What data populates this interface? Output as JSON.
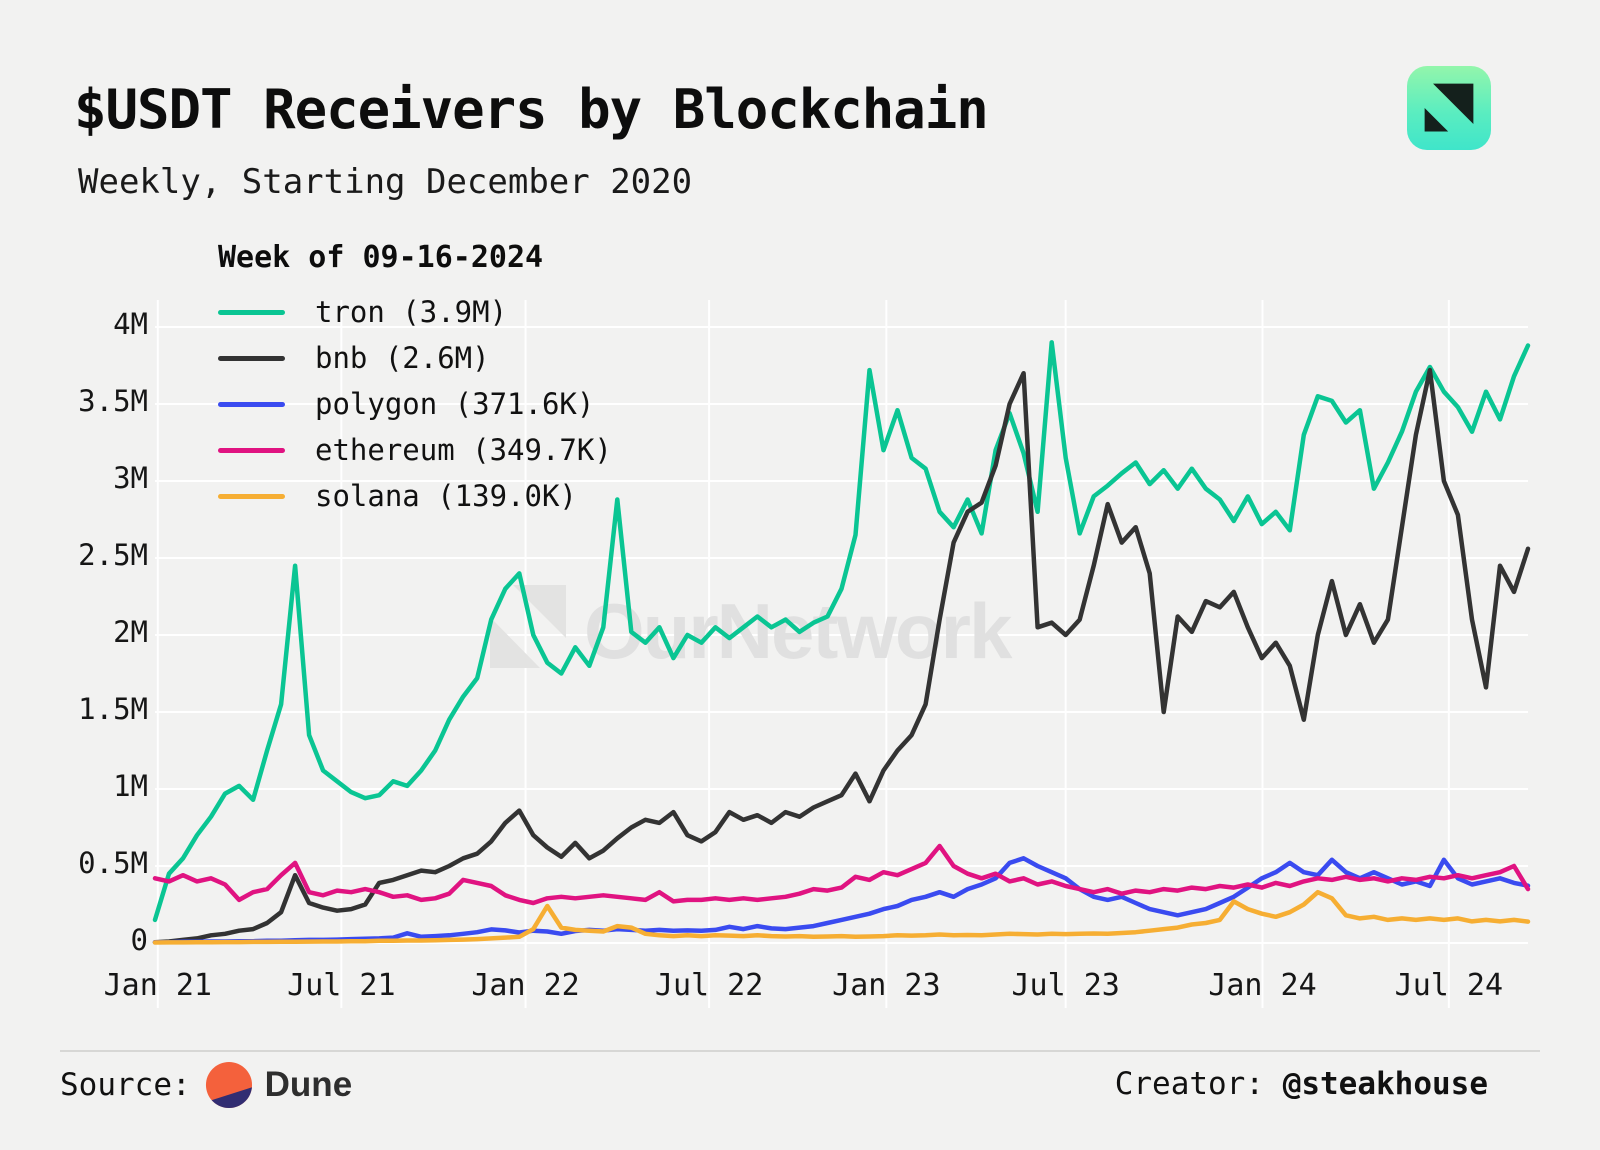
{
  "header": {
    "title": "$USDT Receivers by Blockchain",
    "subtitle": "Weekly, Starting December 2020"
  },
  "watermark": {
    "text": "OurNetwork",
    "color": "#e0e0e0"
  },
  "footer": {
    "source_label": "Source:",
    "source_name": "Dune",
    "creator_label": "Creator: ",
    "creator_name": "@steakhouse",
    "dune_orange": "#f4613c",
    "dune_navy": "#312d72"
  },
  "chart_data": {
    "type": "line",
    "annotation_title": "Week of 09-16-2024",
    "legend_position": "top-left",
    "grid": true,
    "background": "#f2f2f1",
    "grid_color": "#ffffff",
    "ylim": [
      0,
      4
    ],
    "y_unit": "millions of USDT receivers",
    "y_ticks": [
      0,
      0.5,
      1,
      1.5,
      2,
      2.5,
      3,
      3.5,
      4
    ],
    "y_tick_labels": [
      "0",
      "0.5M",
      "1M",
      "1.5M",
      "2M",
      "2.5M",
      "3M",
      "3.5M",
      "4M"
    ],
    "x_unit": "weeks since December 2020 (sampled every 2 weeks)",
    "x_total_weeks": 196,
    "x_step_weeks": 2,
    "x_tick_labels": [
      "Jan 21",
      "Jul 21",
      "Jan 22",
      "Jul 22",
      "Jan 23",
      "Jul 23",
      "Jan 24",
      "Jul 24"
    ],
    "x_tick_weeks": [
      0.4,
      26.6,
      52.9,
      79.1,
      104.4,
      130.0,
      158.1,
      184.7
    ],
    "series": [
      {
        "name": "tron",
        "label": "tron (3.9M)",
        "final_value": "3.9M",
        "color": "#0ac593",
        "values": [
          0.15,
          0.45,
          0.55,
          0.7,
          0.82,
          0.97,
          1.02,
          0.93,
          1.25,
          1.55,
          2.45,
          1.35,
          1.12,
          1.05,
          0.98,
          0.94,
          0.96,
          1.05,
          1.02,
          1.12,
          1.25,
          1.45,
          1.6,
          1.72,
          2.1,
          2.3,
          2.4,
          2.0,
          1.82,
          1.75,
          1.92,
          1.8,
          2.05,
          2.88,
          2.02,
          1.95,
          2.05,
          1.85,
          2.0,
          1.95,
          2.05,
          1.98,
          2.05,
          2.12,
          2.05,
          2.1,
          2.02,
          2.08,
          2.12,
          2.3,
          2.65,
          3.72,
          3.2,
          3.46,
          3.15,
          3.08,
          2.8,
          2.7,
          2.88,
          2.66,
          3.2,
          3.44,
          3.18,
          2.8,
          3.9,
          3.15,
          2.66,
          2.9,
          2.97,
          3.05,
          3.12,
          2.98,
          3.07,
          2.95,
          3.08,
          2.95,
          2.88,
          2.74,
          2.9,
          2.72,
          2.8,
          2.68,
          3.3,
          3.55,
          3.52,
          3.38,
          3.46,
          2.95,
          3.12,
          3.32,
          3.58,
          3.74,
          3.58,
          3.48,
          3.32,
          3.58,
          3.4,
          3.68,
          3.88
        ]
      },
      {
        "name": "bnb",
        "label": "bnb (2.6M)",
        "final_value": "2.6M",
        "color": "#333333",
        "values": [
          0.005,
          0.01,
          0.02,
          0.03,
          0.05,
          0.06,
          0.08,
          0.09,
          0.13,
          0.2,
          0.44,
          0.26,
          0.23,
          0.21,
          0.22,
          0.25,
          0.39,
          0.41,
          0.44,
          0.47,
          0.46,
          0.5,
          0.55,
          0.58,
          0.66,
          0.78,
          0.86,
          0.7,
          0.62,
          0.56,
          0.65,
          0.55,
          0.6,
          0.68,
          0.75,
          0.8,
          0.78,
          0.85,
          0.7,
          0.66,
          0.72,
          0.85,
          0.8,
          0.83,
          0.78,
          0.85,
          0.82,
          0.88,
          0.92,
          0.96,
          1.1,
          0.92,
          1.12,
          1.25,
          1.35,
          1.55,
          2.1,
          2.6,
          2.8,
          2.86,
          3.1,
          3.5,
          3.7,
          2.05,
          2.08,
          2.0,
          2.1,
          2.45,
          2.85,
          2.6,
          2.7,
          2.4,
          1.5,
          2.12,
          2.02,
          2.22,
          2.18,
          2.28,
          2.05,
          1.85,
          1.95,
          1.8,
          1.45,
          2.0,
          2.35,
          2.0,
          2.2,
          1.95,
          2.1,
          2.7,
          3.3,
          3.72,
          3.0,
          2.78,
          2.1,
          1.66,
          2.45,
          2.28,
          2.56
        ]
      },
      {
        "name": "polygon",
        "label": "polygon (371.6K)",
        "final_value": "371.6K",
        "color": "#3a4bf0",
        "values": [
          0.005,
          0.005,
          0.008,
          0.008,
          0.01,
          0.01,
          0.012,
          0.012,
          0.015,
          0.015,
          0.018,
          0.02,
          0.02,
          0.022,
          0.025,
          0.028,
          0.03,
          0.035,
          0.063,
          0.04,
          0.045,
          0.05,
          0.06,
          0.07,
          0.088,
          0.082,
          0.068,
          0.08,
          0.075,
          0.06,
          0.078,
          0.085,
          0.08,
          0.09,
          0.085,
          0.08,
          0.085,
          0.08,
          0.082,
          0.08,
          0.085,
          0.105,
          0.09,
          0.11,
          0.095,
          0.09,
          0.1,
          0.11,
          0.13,
          0.15,
          0.17,
          0.19,
          0.22,
          0.24,
          0.28,
          0.3,
          0.33,
          0.3,
          0.35,
          0.38,
          0.42,
          0.52,
          0.55,
          0.5,
          0.46,
          0.42,
          0.35,
          0.3,
          0.28,
          0.3,
          0.26,
          0.22,
          0.2,
          0.18,
          0.2,
          0.22,
          0.26,
          0.3,
          0.36,
          0.42,
          0.46,
          0.52,
          0.46,
          0.44,
          0.54,
          0.46,
          0.42,
          0.46,
          0.42,
          0.38,
          0.4,
          0.37,
          0.54,
          0.42,
          0.38,
          0.4,
          0.42,
          0.39,
          0.372
        ]
      },
      {
        "name": "ethereum",
        "label": "ethereum (349.7K)",
        "final_value": "349.7K",
        "color": "#e01381",
        "values": [
          0.42,
          0.4,
          0.44,
          0.4,
          0.42,
          0.38,
          0.28,
          0.33,
          0.35,
          0.44,
          0.52,
          0.33,
          0.31,
          0.34,
          0.33,
          0.35,
          0.33,
          0.3,
          0.31,
          0.28,
          0.29,
          0.32,
          0.41,
          0.39,
          0.37,
          0.31,
          0.28,
          0.26,
          0.29,
          0.3,
          0.29,
          0.3,
          0.31,
          0.3,
          0.29,
          0.28,
          0.33,
          0.27,
          0.28,
          0.28,
          0.29,
          0.28,
          0.29,
          0.28,
          0.29,
          0.3,
          0.32,
          0.35,
          0.34,
          0.36,
          0.43,
          0.41,
          0.46,
          0.44,
          0.48,
          0.52,
          0.63,
          0.5,
          0.45,
          0.42,
          0.45,
          0.4,
          0.42,
          0.38,
          0.4,
          0.37,
          0.35,
          0.33,
          0.35,
          0.32,
          0.34,
          0.33,
          0.35,
          0.34,
          0.36,
          0.35,
          0.37,
          0.36,
          0.38,
          0.36,
          0.39,
          0.37,
          0.4,
          0.42,
          0.41,
          0.43,
          0.41,
          0.42,
          0.4,
          0.42,
          0.41,
          0.43,
          0.42,
          0.44,
          0.42,
          0.44,
          0.46,
          0.5,
          0.35
        ]
      },
      {
        "name": "solana",
        "label": "solana (139.0K)",
        "final_value": "139.0K",
        "color": "#f6ae33",
        "values": [
          0.003,
          0.004,
          0.004,
          0.005,
          0.005,
          0.006,
          0.006,
          0.007,
          0.007,
          0.008,
          0.008,
          0.009,
          0.01,
          0.01,
          0.012,
          0.012,
          0.014,
          0.015,
          0.016,
          0.016,
          0.018,
          0.02,
          0.022,
          0.025,
          0.03,
          0.035,
          0.04,
          0.09,
          0.24,
          0.1,
          0.085,
          0.08,
          0.075,
          0.11,
          0.1,
          0.06,
          0.05,
          0.045,
          0.05,
          0.045,
          0.05,
          0.048,
          0.045,
          0.05,
          0.045,
          0.042,
          0.045,
          0.04,
          0.042,
          0.045,
          0.04,
          0.042,
          0.045,
          0.05,
          0.048,
          0.05,
          0.055,
          0.05,
          0.052,
          0.05,
          0.055,
          0.06,
          0.058,
          0.055,
          0.06,
          0.058,
          0.06,
          0.062,
          0.06,
          0.065,
          0.07,
          0.08,
          0.09,
          0.1,
          0.12,
          0.13,
          0.15,
          0.27,
          0.22,
          0.19,
          0.17,
          0.2,
          0.25,
          0.33,
          0.29,
          0.18,
          0.16,
          0.17,
          0.15,
          0.16,
          0.15,
          0.16,
          0.15,
          0.16,
          0.14,
          0.15,
          0.14,
          0.15,
          0.139
        ]
      }
    ]
  }
}
